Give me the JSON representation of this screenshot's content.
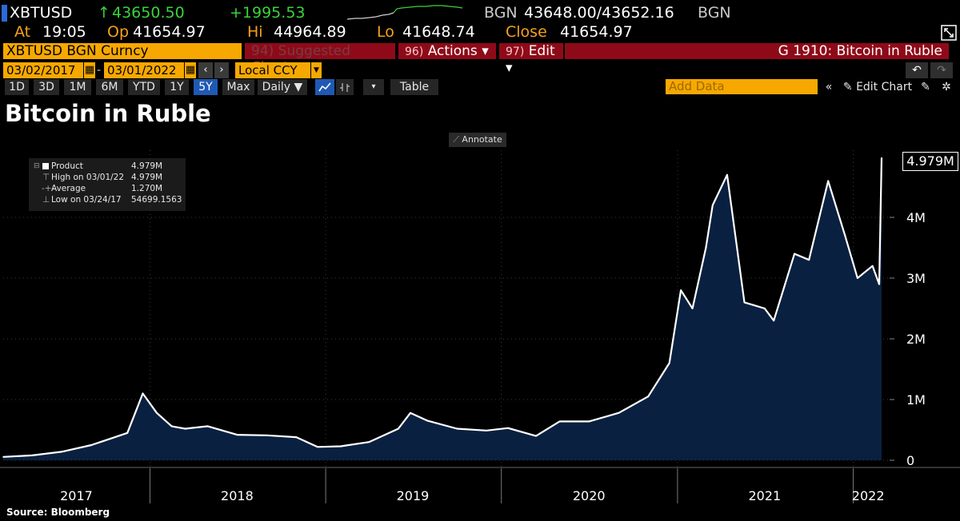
{
  "quote": {
    "ticker": "XBTUSD",
    "last_arrow": "↑",
    "last_price": "43650.50",
    "change": "+1995.53",
    "source_left": "BGN",
    "bid_ask": "43648.00/43652.16",
    "source_right": "BGN",
    "at_label": "At",
    "at_value": "19:05",
    "open_label": "Op",
    "open_value": "41654.97",
    "high_label": "Hi",
    "high_value": "44964.89",
    "low_label": "Lo",
    "low_value": "41648.74",
    "close_label": "Close",
    "close_value": "41654.97"
  },
  "toolbar": {
    "security": "XBTUSD BGN Curncy",
    "suggested_num": "94)",
    "suggested_label": "Suggested Charts",
    "actions_num": "96)",
    "actions_label": "Actions ▾",
    "edit_num": "97)",
    "edit_label": "Edit ▾",
    "chart_title": "G 1910: Bitcoin in Ruble",
    "start_date": "03/02/2017",
    "end_date": "03/01/2022",
    "currency": "Local CCY",
    "periods": [
      "1D",
      "3D",
      "1M",
      "6M",
      "YTD",
      "1Y",
      "5Y",
      "Max"
    ],
    "active_period": "5Y",
    "frequency": "Daily ▼",
    "table_label": "Table",
    "add_data_placeholder": "Add Data",
    "edit_chart_label": "Edit Chart"
  },
  "chart_title_text": "Bitcoin in Ruble",
  "annotate_label": "Annotate",
  "legend": {
    "product_label": "Product",
    "product_value": "4.979M",
    "high_label": "High on 03/01/22",
    "high_value": "4.979M",
    "average_label": "Average",
    "average_value": "1.270M",
    "low_label": "Low on 03/24/17",
    "low_value": "54699.1563"
  },
  "last_value_label": "4.979M",
  "source_label": "Source: Bloomberg",
  "colors": {
    "accent_orange": "#f7a800",
    "header_red": "#8f0a18",
    "area_fill": "#0a2040",
    "line": "#ffffff",
    "up_green": "#3bd23b"
  },
  "chart_data": {
    "type": "area",
    "title": "Bitcoin in Ruble",
    "unit": "RUB",
    "x_tick_labels": [
      "2017",
      "2018",
      "2019",
      "2020",
      "2021",
      "2022"
    ],
    "y_tick_labels": [
      "0",
      "1M",
      "2M",
      "3M",
      "4M"
    ],
    "ylim": [
      0,
      5000000
    ],
    "grid": true,
    "x": [
      "2017-03-02",
      "2017-05-01",
      "2017-07-01",
      "2017-09-01",
      "2017-11-15",
      "2017-12-17",
      "2018-01-15",
      "2018-02-15",
      "2018-03-15",
      "2018-05-01",
      "2018-07-01",
      "2018-09-01",
      "2018-11-01",
      "2018-12-15",
      "2019-02-01",
      "2019-04-01",
      "2019-06-01",
      "2019-06-26",
      "2019-08-01",
      "2019-10-01",
      "2019-12-01",
      "2020-01-15",
      "2020-03-13",
      "2020-05-01",
      "2020-07-01",
      "2020-09-01",
      "2020-11-01",
      "2020-12-15",
      "2021-01-08",
      "2021-02-01",
      "2021-03-01",
      "2021-03-15",
      "2021-04-14",
      "2021-05-20",
      "2021-07-01",
      "2021-07-20",
      "2021-09-01",
      "2021-10-01",
      "2021-11-10",
      "2021-12-15",
      "2022-01-10",
      "2022-02-10",
      "2022-02-24",
      "2022-03-01"
    ],
    "series": [
      {
        "values": [
          54699,
          80000,
          140000,
          250000,
          450000,
          1100000,
          780000,
          560000,
          520000,
          560000,
          420000,
          410000,
          380000,
          220000,
          230000,
          300000,
          520000,
          780000,
          650000,
          520000,
          490000,
          530000,
          400000,
          640000,
          640000,
          780000,
          1050000,
          1600000,
          2800000,
          2500000,
          3500000,
          4200000,
          4700000,
          2600000,
          2500000,
          2300000,
          3400000,
          3300000,
          4600000,
          3700000,
          3000000,
          3200000,
          2900000,
          4979000
        ]
      }
    ]
  }
}
